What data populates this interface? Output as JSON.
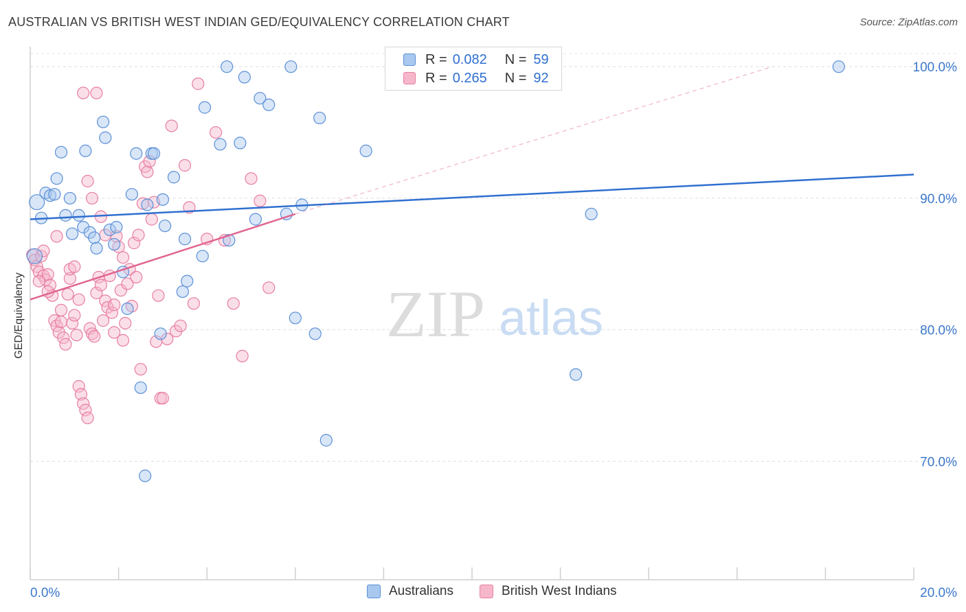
{
  "header": {
    "title": "AUSTRALIAN VS BRITISH WEST INDIAN GED/EQUIVALENCY CORRELATION CHART",
    "source": "Source: ZipAtlas.com"
  },
  "watermark": {
    "zip": "ZIP",
    "atlas": "atlas"
  },
  "colors": {
    "blue_fill": "#a9c8ef",
    "blue_stroke": "#5b8fd6",
    "blue_line": "#2f6fd0",
    "pink_fill": "#f6b7cb",
    "pink_stroke": "#e77ea1",
    "pink_line": "#e0658f",
    "axis_label": "#3b78cc"
  },
  "legend_top": {
    "rows": [
      {
        "r_label": "R =",
        "r_value": "0.082",
        "n_label": "N =",
        "n_value": "59"
      },
      {
        "r_label": "R =",
        "r_value": "0.265",
        "n_label": "N =",
        "n_value": "92"
      }
    ]
  },
  "legend_bottom": {
    "items": [
      "Australians",
      "British West Indians"
    ]
  },
  "chart_data": {
    "type": "scatter",
    "title": "AUSTRALIAN VS BRITISH WEST INDIAN GED/EQUIVALENCY CORRELATION CHART",
    "xlabel": "",
    "ylabel": "GED/Equivalency",
    "xlim": [
      0,
      20
    ],
    "ylim": [
      61,
      101
    ],
    "x_tick_labels": [
      "0.0%",
      "20.0%"
    ],
    "y_ticks": [
      70,
      80,
      90,
      100
    ],
    "y_tick_labels": [
      "70.0%",
      "80.0%",
      "90.0%",
      "100.0%"
    ],
    "grid": true,
    "legend_position": "top-center",
    "series": [
      {
        "name": "Australians",
        "R": 0.082,
        "N": 59,
        "trend": {
          "x": [
            0,
            20
          ],
          "y": [
            88.4,
            91.8
          ]
        },
        "points": [
          [
            0.15,
            89.7
          ],
          [
            0.25,
            88.5
          ],
          [
            0.35,
            90.4
          ],
          [
            0.45,
            90.2
          ],
          [
            0.55,
            90.3
          ],
          [
            0.6,
            91.5
          ],
          [
            0.7,
            93.5
          ],
          [
            0.8,
            88.7
          ],
          [
            0.9,
            90.0
          ],
          [
            0.95,
            87.3
          ],
          [
            1.1,
            88.7
          ],
          [
            1.2,
            87.8
          ],
          [
            1.25,
            93.6
          ],
          [
            1.35,
            87.4
          ],
          [
            1.45,
            87.0
          ],
          [
            1.5,
            86.2
          ],
          [
            1.65,
            95.8
          ],
          [
            1.7,
            94.6
          ],
          [
            1.8,
            87.6
          ],
          [
            1.9,
            86.5
          ],
          [
            1.95,
            87.8
          ],
          [
            2.1,
            84.4
          ],
          [
            2.2,
            81.6
          ],
          [
            2.3,
            90.3
          ],
          [
            2.4,
            93.4
          ],
          [
            2.5,
            75.6
          ],
          [
            2.6,
            68.9
          ],
          [
            2.65,
            89.5
          ],
          [
            2.75,
            93.4
          ],
          [
            2.8,
            93.4
          ],
          [
            2.95,
            79.7
          ],
          [
            3.0,
            89.9
          ],
          [
            3.05,
            87.9
          ],
          [
            3.25,
            91.6
          ],
          [
            3.45,
            82.9
          ],
          [
            3.5,
            86.9
          ],
          [
            3.55,
            83.7
          ],
          [
            3.9,
            85.6
          ],
          [
            3.95,
            96.9
          ],
          [
            4.3,
            94.1
          ],
          [
            4.45,
            100.0
          ],
          [
            4.5,
            86.8
          ],
          [
            4.75,
            94.2
          ],
          [
            4.85,
            99.2
          ],
          [
            5.1,
            88.4
          ],
          [
            5.2,
            97.6
          ],
          [
            5.4,
            97.1
          ],
          [
            5.8,
            88.8
          ],
          [
            5.9,
            100.0
          ],
          [
            6.0,
            80.9
          ],
          [
            6.15,
            89.5
          ],
          [
            6.45,
            79.7
          ],
          [
            6.55,
            96.1
          ],
          [
            6.7,
            71.6
          ],
          [
            7.6,
            93.6
          ],
          [
            12.35,
            76.6
          ],
          [
            12.7,
            88.8
          ],
          [
            18.3,
            100.0
          ],
          [
            0.1,
            85.6
          ]
        ]
      },
      {
        "name": "British West Indians",
        "R": 0.265,
        "N": 92,
        "trend": {
          "x": [
            0,
            6.0
          ],
          "y": [
            82.3,
            88.8
          ]
        },
        "trend_extension": {
          "x": [
            6.0,
            16.8
          ],
          "y": [
            88.8,
            100.0
          ]
        },
        "points": [
          [
            0.05,
            85.7
          ],
          [
            0.1,
            85.3
          ],
          [
            0.15,
            84.8
          ],
          [
            0.2,
            84.4
          ],
          [
            0.25,
            85.6
          ],
          [
            0.3,
            84.1
          ],
          [
            0.35,
            83.8
          ],
          [
            0.4,
            84.2
          ],
          [
            0.45,
            83.4
          ],
          [
            0.5,
            82.6
          ],
          [
            0.55,
            80.7
          ],
          [
            0.6,
            80.3
          ],
          [
            0.65,
            79.8
          ],
          [
            0.7,
            81.5
          ],
          [
            0.75,
            79.4
          ],
          [
            0.8,
            78.9
          ],
          [
            0.85,
            82.7
          ],
          [
            0.9,
            83.9
          ],
          [
            0.95,
            80.5
          ],
          [
            1.0,
            81.1
          ],
          [
            1.05,
            79.6
          ],
          [
            1.1,
            75.7
          ],
          [
            1.15,
            75.1
          ],
          [
            1.2,
            74.4
          ],
          [
            1.25,
            73.9
          ],
          [
            1.3,
            73.3
          ],
          [
            1.35,
            80.1
          ],
          [
            1.4,
            79.7
          ],
          [
            1.45,
            79.5
          ],
          [
            1.5,
            82.8
          ],
          [
            1.55,
            84.0
          ],
          [
            1.6,
            83.4
          ],
          [
            1.65,
            80.7
          ],
          [
            1.7,
            82.2
          ],
          [
            1.75,
            81.7
          ],
          [
            1.8,
            84.1
          ],
          [
            1.85,
            81.3
          ],
          [
            1.9,
            79.8
          ],
          [
            1.95,
            87.1
          ],
          [
            2.0,
            86.3
          ],
          [
            2.05,
            83.0
          ],
          [
            2.1,
            79.2
          ],
          [
            2.15,
            80.5
          ],
          [
            2.2,
            83.5
          ],
          [
            2.25,
            84.6
          ],
          [
            2.3,
            81.8
          ],
          [
            2.35,
            86.6
          ],
          [
            2.4,
            84.0
          ],
          [
            2.45,
            87.2
          ],
          [
            2.5,
            77.0
          ],
          [
            2.55,
            89.6
          ],
          [
            2.6,
            92.4
          ],
          [
            2.65,
            92.0
          ],
          [
            2.7,
            92.8
          ],
          [
            2.75,
            88.4
          ],
          [
            2.8,
            89.7
          ],
          [
            2.85,
            79.1
          ],
          [
            2.9,
            82.6
          ],
          [
            2.95,
            74.8
          ],
          [
            3.0,
            74.8
          ],
          [
            3.1,
            79.3
          ],
          [
            3.2,
            95.5
          ],
          [
            3.3,
            79.9
          ],
          [
            3.4,
            80.3
          ],
          [
            3.5,
            92.5
          ],
          [
            3.6,
            89.3
          ],
          [
            3.7,
            82.0
          ],
          [
            3.8,
            98.7
          ],
          [
            4.0,
            86.9
          ],
          [
            4.2,
            95.0
          ],
          [
            4.4,
            86.8
          ],
          [
            4.6,
            82.0
          ],
          [
            4.8,
            78.0
          ],
          [
            5.0,
            91.5
          ],
          [
            5.2,
            89.8
          ],
          [
            5.4,
            83.2
          ],
          [
            0.3,
            86.0
          ],
          [
            0.6,
            87.1
          ],
          [
            0.9,
            84.6
          ],
          [
            1.2,
            98.0
          ],
          [
            1.3,
            91.3
          ],
          [
            1.4,
            90.0
          ],
          [
            1.5,
            98.0
          ],
          [
            1.6,
            88.6
          ],
          [
            1.7,
            87.2
          ],
          [
            0.2,
            83.7
          ],
          [
            0.4,
            82.9
          ],
          [
            0.7,
            80.6
          ],
          [
            1.0,
            84.8
          ],
          [
            1.1,
            82.3
          ],
          [
            1.9,
            81.9
          ],
          [
            2.1,
            85.5
          ]
        ]
      }
    ]
  }
}
